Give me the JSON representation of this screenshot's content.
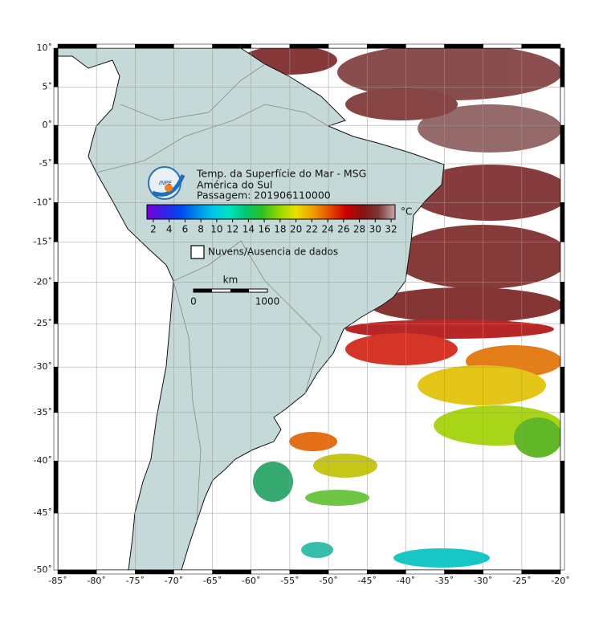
{
  "header": {
    "title": "Temp. da Superfície do Mar - MSG",
    "region": "América do Sul",
    "pass": "Passagem: 201906110000",
    "logo": "INPE"
  },
  "colorbar": {
    "unit": "°C",
    "range": [
      1.2,
      32.5
    ],
    "ticks": [
      2,
      4,
      6,
      8,
      10,
      12,
      14,
      16,
      18,
      20,
      22,
      24,
      26,
      28,
      30,
      32
    ],
    "colors": [
      "#7a00d8",
      "#3a1ee8",
      "#0046f0",
      "#008ae8",
      "#00c8e8",
      "#00e0c0",
      "#00c870",
      "#30c020",
      "#98d800",
      "#e8e000",
      "#f0a000",
      "#e85000",
      "#d00000",
      "#8a1010",
      "#7a3838",
      "#c8a8a8"
    ]
  },
  "legend": "Nuvens/Ausencia de dados",
  "scale": {
    "unit": "km",
    "start": "0",
    "end": "1000"
  },
  "axes": {
    "lon_ticks": [
      {
        "value": -85,
        "label": "-85˚"
      },
      {
        "value": -80,
        "label": "-80˚"
      },
      {
        "value": -75,
        "label": "-75˚"
      },
      {
        "value": -70,
        "label": "-70˚"
      },
      {
        "value": -65,
        "label": "-65˚"
      },
      {
        "value": -60,
        "label": "-60˚"
      },
      {
        "value": -55,
        "label": "-55˚"
      },
      {
        "value": -50,
        "label": "-50˚"
      },
      {
        "value": -45,
        "label": "-45˚"
      },
      {
        "value": -40,
        "label": "-40˚"
      },
      {
        "value": -35,
        "label": "-35˚"
      },
      {
        "value": -30,
        "label": "-30˚"
      },
      {
        "value": -25,
        "label": "-25˚"
      },
      {
        "value": -20,
        "label": "-20˚"
      }
    ],
    "lat_ticks": [
      {
        "value": 10,
        "label": "10˚"
      },
      {
        "value": 5,
        "label": "5˚"
      },
      {
        "value": 0,
        "label": "0˚"
      },
      {
        "value": -5,
        "label": "-5˚"
      },
      {
        "value": -10,
        "label": "-10˚"
      },
      {
        "value": -15,
        "label": "-15˚"
      },
      {
        "value": -20,
        "label": "-20˚"
      },
      {
        "value": -25,
        "label": "-25˚"
      },
      {
        "value": -30,
        "label": "-30˚"
      },
      {
        "value": -35,
        "label": "-35˚"
      },
      {
        "value": -40,
        "label": "-40˚"
      },
      {
        "value": -45,
        "label": "-45˚"
      },
      {
        "value": -50,
        "label": "-50˚"
      }
    ]
  }
}
